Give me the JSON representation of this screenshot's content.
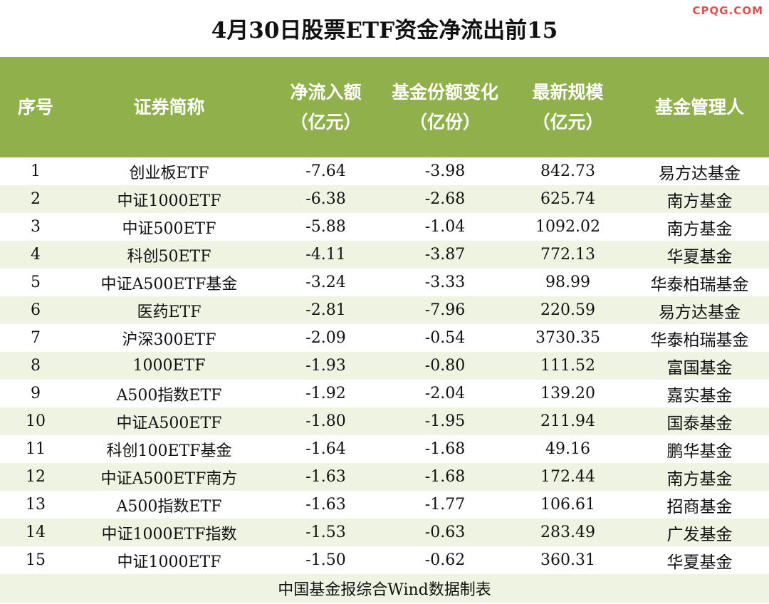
{
  "watermark": "CPQG.COM",
  "title": "4月30日股票ETF资金净流出前15",
  "columns": [
    {
      "line1": "序号",
      "line2": ""
    },
    {
      "line1": "证券简称",
      "line2": ""
    },
    {
      "line1": "净流入额",
      "line2": "（亿元）"
    },
    {
      "line1": "基金份额变化",
      "line2": "（亿份）"
    },
    {
      "line1": "最新规模",
      "line2": "（亿元）"
    },
    {
      "line1": "基金管理人",
      "line2": ""
    }
  ],
  "rows": [
    [
      "1",
      "创业板ETF",
      "-7.64",
      "-3.98",
      "842.73",
      "易方达基金"
    ],
    [
      "2",
      "中证1000ETF",
      "-6.38",
      "-2.68",
      "625.74",
      "南方基金"
    ],
    [
      "3",
      "中证500ETF",
      "-5.88",
      "-1.04",
      "1092.02",
      "南方基金"
    ],
    [
      "4",
      "科创50ETF",
      "-4.11",
      "-3.87",
      "772.13",
      "华夏基金"
    ],
    [
      "5",
      "中证A500ETF基金",
      "-3.24",
      "-3.33",
      "98.99",
      "华泰柏瑞基金"
    ],
    [
      "6",
      "医药ETF",
      "-2.81",
      "-7.96",
      "220.59",
      "易方达基金"
    ],
    [
      "7",
      "沪深300ETF",
      "-2.09",
      "-0.54",
      "3730.35",
      "华泰柏瑞基金"
    ],
    [
      "8",
      "1000ETF",
      "-1.93",
      "-0.80",
      "111.52",
      "富国基金"
    ],
    [
      "9",
      "A500指数ETF",
      "-1.92",
      "-2.04",
      "139.20",
      "嘉实基金"
    ],
    [
      "10",
      "中证A500ETF",
      "-1.80",
      "-1.95",
      "211.94",
      "国泰基金"
    ],
    [
      "11",
      "科创100ETF基金",
      "-1.64",
      "-1.68",
      "49.16",
      "鹏华基金"
    ],
    [
      "12",
      "中证A500ETF南方",
      "-1.63",
      "-1.68",
      "172.44",
      "南方基金"
    ],
    [
      "13",
      "A500指数ETF",
      "-1.63",
      "-1.77",
      "106.61",
      "招商基金"
    ],
    [
      "14",
      "中证1000ETF指数",
      "-1.53",
      "-0.63",
      "283.49",
      "广发基金"
    ],
    [
      "15",
      "中证1000ETF",
      "-1.50",
      "-0.62",
      "360.31",
      "华夏基金"
    ]
  ],
  "footer": "中国基金报综合Wind数据制表",
  "colors": {
    "header_bg": "#8fb04a",
    "row_alt_bg": "#eef3e2",
    "watermark": "#d9534f"
  }
}
